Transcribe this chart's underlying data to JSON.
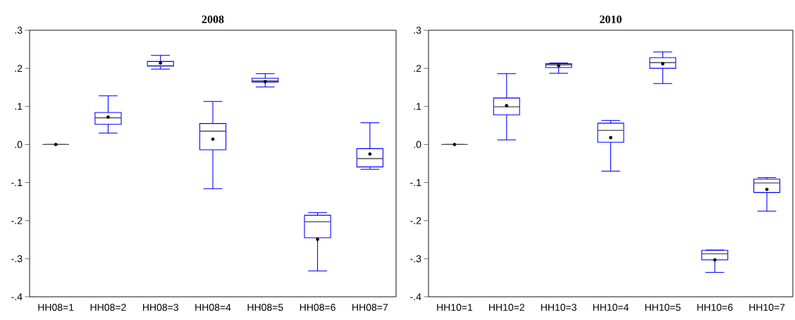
{
  "chart_data": [
    {
      "type": "box",
      "title": "2008",
      "categories": [
        "HH08=1",
        "HH08=2",
        "HH08=3",
        "HH08=4",
        "HH08=5",
        "HH08=6",
        "HH08=7"
      ],
      "series": [
        {
          "color": "#0000ff",
          "boxes": [
            {
              "low": 0.0,
              "q1": 0.0,
              "median": 0.0,
              "q3": 0.0,
              "high": 0.0,
              "mean": 0.0
            },
            {
              "low": 0.03,
              "q1": 0.053,
              "median": 0.07,
              "q3": 0.084,
              "high": 0.128,
              "mean": 0.072
            },
            {
              "low": 0.198,
              "q1": 0.206,
              "median": 0.207,
              "q3": 0.218,
              "high": 0.234,
              "mean": 0.214
            },
            {
              "low": -0.116,
              "q1": -0.014,
              "median": 0.035,
              "q3": 0.055,
              "high": 0.113,
              "mean": 0.014
            },
            {
              "low": 0.151,
              "q1": 0.164,
              "median": 0.167,
              "q3": 0.174,
              "high": 0.186,
              "mean": 0.165
            },
            {
              "low": -0.332,
              "q1": -0.245,
              "median": -0.203,
              "q3": -0.186,
              "high": -0.179,
              "mean": -0.249
            },
            {
              "low": -0.065,
              "q1": -0.059,
              "median": -0.037,
              "q3": -0.011,
              "high": 0.057,
              "mean": -0.025
            }
          ]
        }
      ],
      "ylim": [
        -0.4,
        0.3
      ],
      "yticks": [
        {
          "value": -0.4,
          "label": "-.4"
        },
        {
          "value": -0.3,
          "label": "-.3"
        },
        {
          "value": -0.2,
          "label": "-.2"
        },
        {
          "value": -0.1,
          "label": "-.1"
        },
        {
          "value": 0.0,
          "label": ".0"
        },
        {
          "value": 0.1,
          "label": ".1"
        },
        {
          "value": 0.2,
          "label": ".2"
        },
        {
          "value": 0.3,
          "label": ".3"
        }
      ]
    },
    {
      "type": "box",
      "title": "2010",
      "categories": [
        "HH10=1",
        "HH10=2",
        "HH10=3",
        "HH10=4",
        "HH10=5",
        "HH10=6",
        "HH10=7"
      ],
      "series": [
        {
          "color": "#0000ff",
          "boxes": [
            {
              "low": 0.0,
              "q1": 0.0,
              "median": 0.0,
              "q3": 0.0,
              "high": 0.0,
              "mean": 0.0
            },
            {
              "low": 0.012,
              "q1": 0.078,
              "median": 0.099,
              "q3": 0.122,
              "high": 0.186,
              "mean": 0.102
            },
            {
              "low": 0.187,
              "q1": 0.202,
              "median": 0.209,
              "q3": 0.212,
              "high": 0.214,
              "mean": 0.207
            },
            {
              "low": -0.07,
              "q1": 0.006,
              "median": 0.037,
              "q3": 0.056,
              "high": 0.063,
              "mean": 0.018
            },
            {
              "low": 0.16,
              "q1": 0.2,
              "median": 0.215,
              "q3": 0.228,
              "high": 0.243,
              "mean": 0.212
            },
            {
              "low": -0.336,
              "q1": -0.303,
              "median": -0.287,
              "q3": -0.278,
              "high": -0.277,
              "mean": -0.303
            },
            {
              "low": -0.175,
              "q1": -0.126,
              "median": -0.101,
              "q3": -0.091,
              "high": -0.087,
              "mean": -0.118
            }
          ]
        }
      ],
      "ylim": [
        -0.4,
        0.3
      ],
      "yticks": [
        {
          "value": -0.4,
          "label": "-.4"
        },
        {
          "value": -0.3,
          "label": "-.3"
        },
        {
          "value": -0.2,
          "label": "-.2"
        },
        {
          "value": -0.1,
          "label": "-.1"
        },
        {
          "value": 0.0,
          "label": ".0"
        },
        {
          "value": 0.1,
          "label": ".1"
        },
        {
          "value": 0.2,
          "label": ".2"
        },
        {
          "value": 0.3,
          "label": ".3"
        }
      ]
    }
  ]
}
